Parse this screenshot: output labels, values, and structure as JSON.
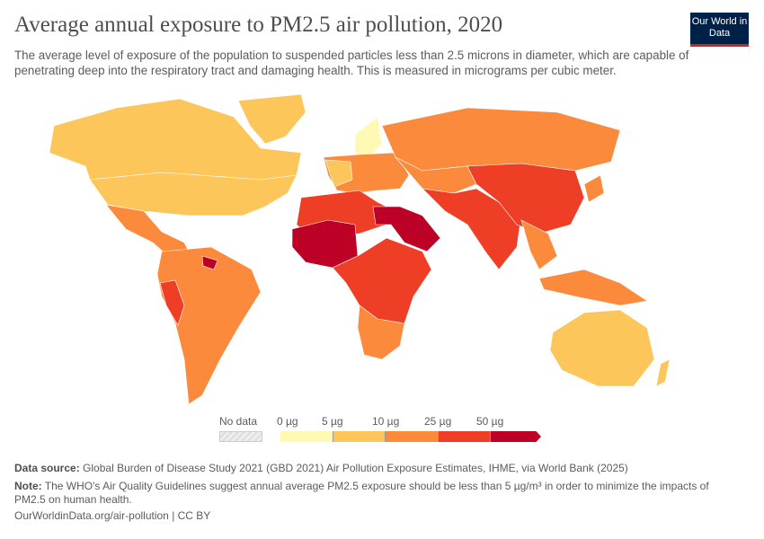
{
  "header": {
    "title": "Average annual exposure to PM2.5 air pollution, 2020",
    "subtitle": "The average level of exposure of the population to suspended particles less than 2.5 microns in diameter, which are capable of penetrating deep into the respiratory tract and damaging health. This is measured in micrograms per cubic meter.",
    "logo": "Our World in Data"
  },
  "legend": {
    "no_data": "No data",
    "ticks": [
      "0 µg",
      "5 µg",
      "10 µg",
      "25 µg",
      "50 µg"
    ],
    "colors": [
      "#fefab3",
      "#fdc65b",
      "#fb8a3c",
      "#ee3f26",
      "#bd0026"
    ],
    "no_data_color": "#eeeeee"
  },
  "chart_data": {
    "type": "choropleth",
    "title": "Average annual exposure to PM2.5 air pollution, 2020",
    "unit": "µg",
    "bins": [
      [
        0,
        5
      ],
      [
        5,
        10
      ],
      [
        10,
        25
      ],
      [
        25,
        50
      ],
      [
        50,
        null
      ]
    ]
  },
  "footer": {
    "source_label": "Data source:",
    "source": "Global Burden of Disease Study 2021 (GBD 2021) Air Pollution Exposure Estimates, IHME, via World Bank (2025)",
    "note_label": "Note:",
    "note": "The WHO's Air Quality Guidelines suggest annual average PM2.5 exposure should be less than 5 µg/m³ in order to minimize the impacts of PM2.5 on human health.",
    "url": "OurWorldinData.org/air-pollution | CC BY"
  }
}
